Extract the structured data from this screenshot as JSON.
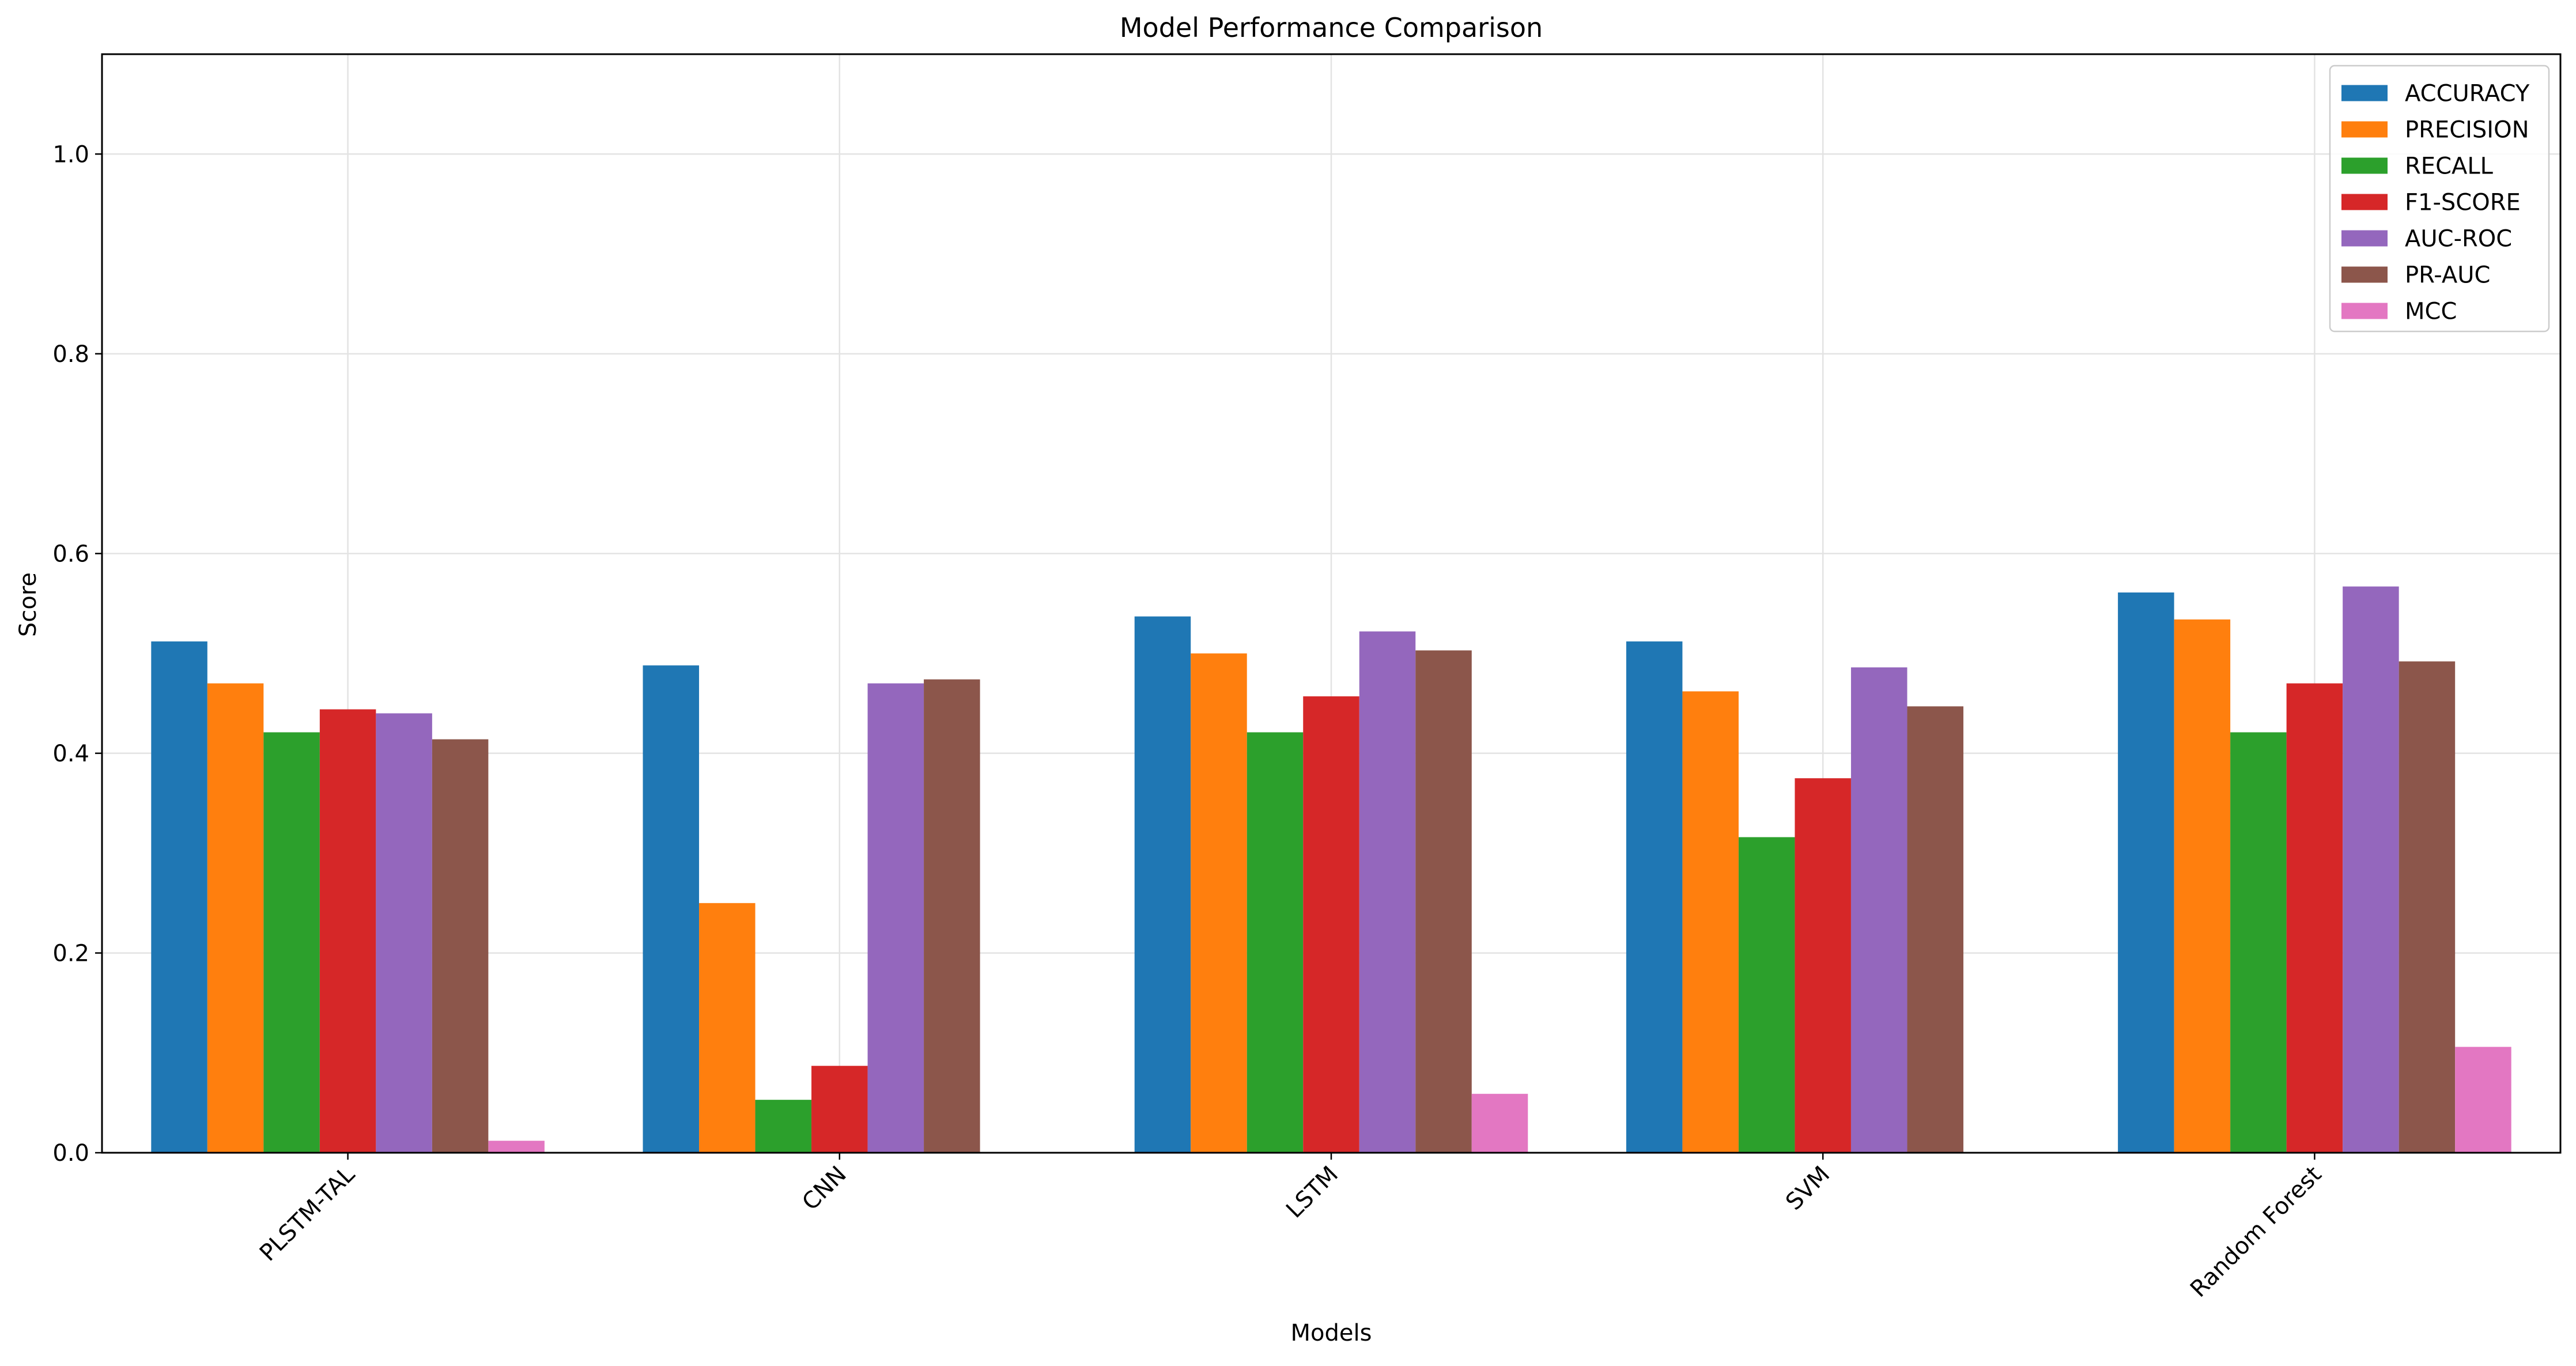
{
  "chart_data": {
    "type": "bar",
    "title": "Model Performance Comparison",
    "xlabel": "Models",
    "ylabel": "Score",
    "ylim": [
      0,
      1.1
    ],
    "yticks": [
      0.0,
      0.2,
      0.4,
      0.6,
      0.8,
      1.0
    ],
    "ytick_labels": [
      "0.0",
      "0.2",
      "0.4",
      "0.6",
      "0.8",
      "1.0"
    ],
    "grid": true,
    "legend_position": "top-right",
    "categories": [
      "PLSTM-TAL",
      "CNN",
      "LSTM",
      "SVM",
      "Random Forest"
    ],
    "series": [
      {
        "name": "ACCURACY",
        "color": "#1f77b4",
        "values": [
          0.512,
          0.488,
          0.537,
          0.512,
          0.561
        ]
      },
      {
        "name": "PRECISION",
        "color": "#ff7f0e",
        "values": [
          0.47,
          0.25,
          0.5,
          0.462,
          0.534
        ]
      },
      {
        "name": "RECALL",
        "color": "#2ca02c",
        "values": [
          0.421,
          0.053,
          0.421,
          0.316,
          0.421
        ]
      },
      {
        "name": "F1-SCORE",
        "color": "#d62728",
        "values": [
          0.444,
          0.087,
          0.457,
          0.375,
          0.47
        ]
      },
      {
        "name": "AUC-ROC",
        "color": "#9467bd",
        "values": [
          0.44,
          0.47,
          0.522,
          0.486,
          0.567
        ]
      },
      {
        "name": "PR-AUC",
        "color": "#8c564b",
        "values": [
          0.414,
          0.474,
          0.503,
          0.447,
          0.492
        ]
      },
      {
        "name": "MCC",
        "color": "#e377c2",
        "values": [
          0.012,
          0.0,
          0.059,
          0.0,
          0.106
        ]
      }
    ]
  }
}
